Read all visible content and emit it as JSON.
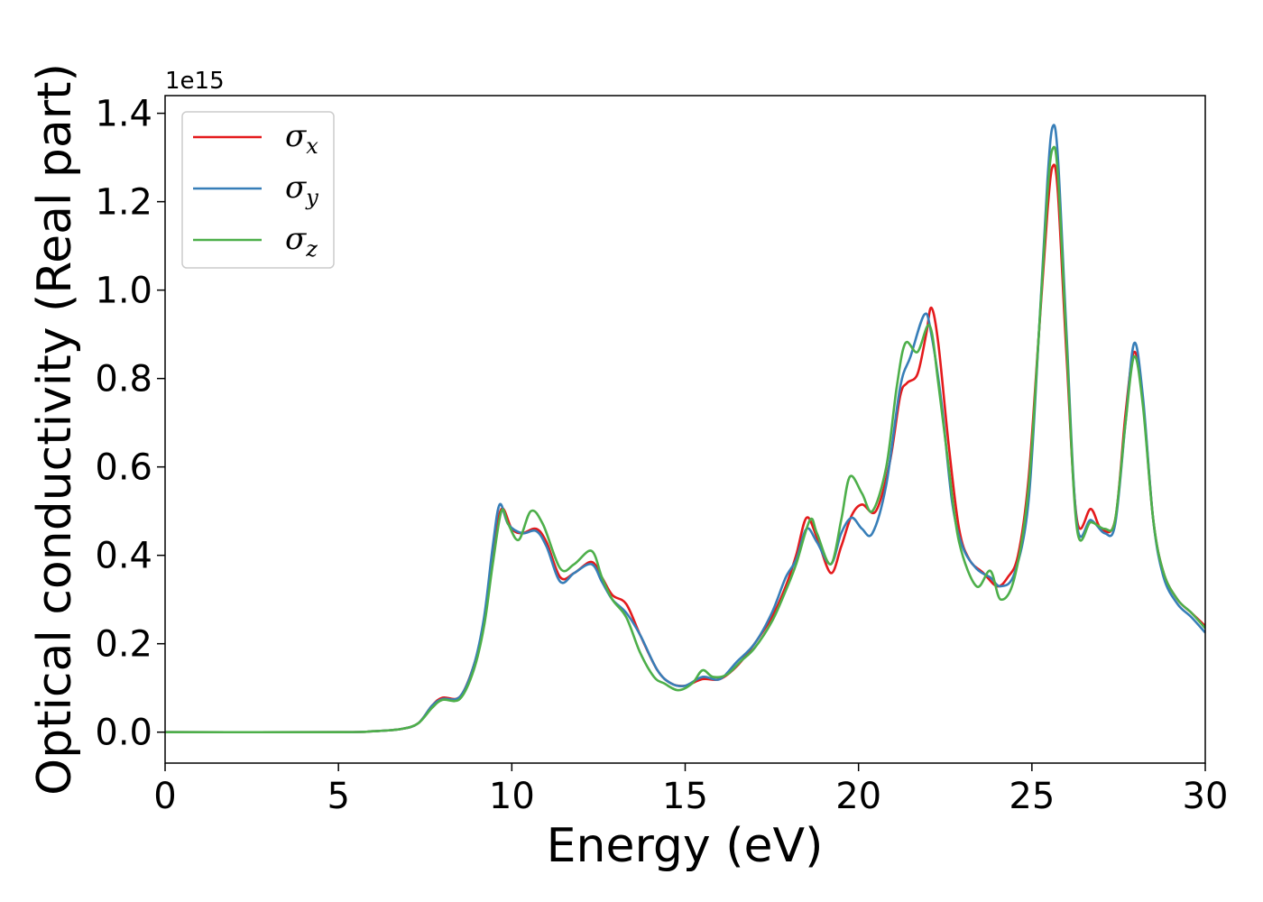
{
  "chart_data": {
    "type": "line",
    "title": "",
    "xlabel": "Energy (eV)",
    "ylabel": "Optical conductivity (Real part)",
    "y_offset_label": "1e15",
    "xlim": [
      0,
      30
    ],
    "ylim": [
      -0.07,
      1.44
    ],
    "x_ticks": [
      0,
      5,
      10,
      15,
      20,
      25,
      30
    ],
    "x_tick_labels": [
      "0",
      "5",
      "10",
      "15",
      "20",
      "25",
      "30"
    ],
    "y_ticks": [
      0.0,
      0.2,
      0.4,
      0.6,
      0.8,
      1.0,
      1.2,
      1.4
    ],
    "y_tick_labels": [
      "0.0",
      "0.2",
      "0.4",
      "0.6",
      "0.8",
      "1.0",
      "1.2",
      "1.4"
    ],
    "grid": false,
    "legend_position": "top-left",
    "series": [
      {
        "name": "σx",
        "symbol": "σ",
        "subscript": "x",
        "color": "#e41a1c",
        "points": [
          [
            0,
            0
          ],
          [
            5,
            0
          ],
          [
            6,
            0.002
          ],
          [
            6.8,
            0.007
          ],
          [
            7.3,
            0.02
          ],
          [
            7.7,
            0.06
          ],
          [
            8,
            0.078
          ],
          [
            8.5,
            0.08
          ],
          [
            8.9,
            0.15
          ],
          [
            9.2,
            0.25
          ],
          [
            9.45,
            0.4
          ],
          [
            9.7,
            0.505
          ],
          [
            10,
            0.46
          ],
          [
            10.3,
            0.45
          ],
          [
            10.7,
            0.46
          ],
          [
            11,
            0.43
          ],
          [
            11.4,
            0.35
          ],
          [
            11.8,
            0.36
          ],
          [
            12.3,
            0.385
          ],
          [
            12.6,
            0.35
          ],
          [
            12.9,
            0.31
          ],
          [
            13.3,
            0.29
          ],
          [
            13.7,
            0.22
          ],
          [
            14.2,
            0.14
          ],
          [
            14.6,
            0.11
          ],
          [
            15,
            0.105
          ],
          [
            15.5,
            0.12
          ],
          [
            16,
            0.12
          ],
          [
            16.5,
            0.15
          ],
          [
            17,
            0.2
          ],
          [
            17.5,
            0.26
          ],
          [
            17.9,
            0.33
          ],
          [
            18.2,
            0.4
          ],
          [
            18.5,
            0.485
          ],
          [
            18.8,
            0.44
          ],
          [
            19.2,
            0.36
          ],
          [
            19.5,
            0.42
          ],
          [
            19.8,
            0.49
          ],
          [
            20.1,
            0.515
          ],
          [
            20.5,
            0.5
          ],
          [
            20.9,
            0.61
          ],
          [
            21.2,
            0.76
          ],
          [
            21.4,
            0.79
          ],
          [
            21.7,
            0.81
          ],
          [
            21.95,
            0.9
          ],
          [
            22.1,
            0.96
          ],
          [
            22.3,
            0.88
          ],
          [
            22.6,
            0.65
          ],
          [
            22.9,
            0.46
          ],
          [
            23.2,
            0.39
          ],
          [
            23.6,
            0.36
          ],
          [
            24,
            0.33
          ],
          [
            24.3,
            0.35
          ],
          [
            24.6,
            0.4
          ],
          [
            24.9,
            0.57
          ],
          [
            25.2,
            0.9
          ],
          [
            25.45,
            1.18
          ],
          [
            25.6,
            1.28
          ],
          [
            25.75,
            1.22
          ],
          [
            26,
            0.85
          ],
          [
            26.3,
            0.48
          ],
          [
            26.7,
            0.505
          ],
          [
            27,
            0.46
          ],
          [
            27.4,
            0.48
          ],
          [
            27.7,
            0.72
          ],
          [
            27.95,
            0.86
          ],
          [
            28.2,
            0.75
          ],
          [
            28.5,
            0.48
          ],
          [
            28.8,
            0.36
          ],
          [
            29.2,
            0.3
          ],
          [
            29.6,
            0.27
          ],
          [
            30,
            0.24
          ]
        ]
      },
      {
        "name": "σy",
        "symbol": "σ",
        "subscript": "y",
        "color": "#377eb8",
        "points": [
          [
            0,
            0
          ],
          [
            5,
            0
          ],
          [
            6,
            0.002
          ],
          [
            6.8,
            0.007
          ],
          [
            7.3,
            0.02
          ],
          [
            7.7,
            0.06
          ],
          [
            8,
            0.075
          ],
          [
            8.5,
            0.08
          ],
          [
            8.9,
            0.15
          ],
          [
            9.2,
            0.26
          ],
          [
            9.45,
            0.42
          ],
          [
            9.65,
            0.515
          ],
          [
            9.9,
            0.47
          ],
          [
            10.3,
            0.45
          ],
          [
            10.7,
            0.455
          ],
          [
            11,
            0.42
          ],
          [
            11.4,
            0.34
          ],
          [
            11.8,
            0.36
          ],
          [
            12.3,
            0.38
          ],
          [
            12.6,
            0.34
          ],
          [
            12.9,
            0.3
          ],
          [
            13.3,
            0.27
          ],
          [
            13.7,
            0.22
          ],
          [
            14.2,
            0.14
          ],
          [
            14.6,
            0.11
          ],
          [
            15,
            0.105
          ],
          [
            15.5,
            0.125
          ],
          [
            16,
            0.12
          ],
          [
            16.5,
            0.16
          ],
          [
            17,
            0.2
          ],
          [
            17.5,
            0.27
          ],
          [
            17.9,
            0.35
          ],
          [
            18.2,
            0.39
          ],
          [
            18.5,
            0.46
          ],
          [
            18.8,
            0.43
          ],
          [
            19.2,
            0.38
          ],
          [
            19.5,
            0.45
          ],
          [
            19.8,
            0.485
          ],
          [
            20.1,
            0.46
          ],
          [
            20.4,
            0.45
          ],
          [
            20.8,
            0.56
          ],
          [
            21.2,
            0.78
          ],
          [
            21.5,
            0.85
          ],
          [
            21.9,
            0.945
          ],
          [
            22.1,
            0.9
          ],
          [
            22.4,
            0.74
          ],
          [
            22.7,
            0.52
          ],
          [
            23,
            0.42
          ],
          [
            23.4,
            0.37
          ],
          [
            23.8,
            0.35
          ],
          [
            24.1,
            0.33
          ],
          [
            24.5,
            0.36
          ],
          [
            24.9,
            0.52
          ],
          [
            25.2,
            0.9
          ],
          [
            25.45,
            1.25
          ],
          [
            25.6,
            1.37
          ],
          [
            25.75,
            1.3
          ],
          [
            26,
            0.9
          ],
          [
            26.3,
            0.47
          ],
          [
            26.7,
            0.48
          ],
          [
            27.1,
            0.45
          ],
          [
            27.4,
            0.47
          ],
          [
            27.7,
            0.7
          ],
          [
            27.95,
            0.88
          ],
          [
            28.2,
            0.76
          ],
          [
            28.5,
            0.48
          ],
          [
            28.8,
            0.35
          ],
          [
            29.2,
            0.29
          ],
          [
            29.6,
            0.26
          ],
          [
            30,
            0.225
          ]
        ]
      },
      {
        "name": "σz",
        "symbol": "σ",
        "subscript": "z",
        "color": "#4daf4a",
        "points": [
          [
            0,
            0
          ],
          [
            5,
            0
          ],
          [
            6,
            0.002
          ],
          [
            6.8,
            0.007
          ],
          [
            7.3,
            0.02
          ],
          [
            7.7,
            0.055
          ],
          [
            8,
            0.073
          ],
          [
            8.5,
            0.075
          ],
          [
            8.9,
            0.14
          ],
          [
            9.2,
            0.24
          ],
          [
            9.45,
            0.38
          ],
          [
            9.7,
            0.5
          ],
          [
            9.9,
            0.47
          ],
          [
            10.2,
            0.435
          ],
          [
            10.55,
            0.5
          ],
          [
            10.9,
            0.47
          ],
          [
            11.4,
            0.37
          ],
          [
            11.8,
            0.38
          ],
          [
            12.3,
            0.41
          ],
          [
            12.6,
            0.35
          ],
          [
            12.9,
            0.3
          ],
          [
            13.3,
            0.26
          ],
          [
            13.7,
            0.18
          ],
          [
            14.1,
            0.125
          ],
          [
            14.4,
            0.11
          ],
          [
            14.8,
            0.095
          ],
          [
            15.2,
            0.11
          ],
          [
            15.5,
            0.14
          ],
          [
            15.8,
            0.125
          ],
          [
            16.2,
            0.13
          ],
          [
            16.6,
            0.16
          ],
          [
            17,
            0.19
          ],
          [
            17.5,
            0.25
          ],
          [
            17.9,
            0.32
          ],
          [
            18.2,
            0.38
          ],
          [
            18.6,
            0.48
          ],
          [
            18.8,
            0.45
          ],
          [
            19.2,
            0.38
          ],
          [
            19.5,
            0.48
          ],
          [
            19.75,
            0.578
          ],
          [
            20.1,
            0.54
          ],
          [
            20.4,
            0.5
          ],
          [
            20.8,
            0.6
          ],
          [
            21.1,
            0.78
          ],
          [
            21.35,
            0.88
          ],
          [
            21.7,
            0.86
          ],
          [
            22.05,
            0.92
          ],
          [
            22.3,
            0.79
          ],
          [
            22.6,
            0.6
          ],
          [
            22.9,
            0.43
          ],
          [
            23.4,
            0.33
          ],
          [
            23.8,
            0.365
          ],
          [
            24.1,
            0.3
          ],
          [
            24.5,
            0.35
          ],
          [
            24.9,
            0.55
          ],
          [
            25.2,
            0.9
          ],
          [
            25.45,
            1.22
          ],
          [
            25.6,
            1.32
          ],
          [
            25.75,
            1.26
          ],
          [
            26,
            0.88
          ],
          [
            26.3,
            0.46
          ],
          [
            26.7,
            0.475
          ],
          [
            27.1,
            0.46
          ],
          [
            27.4,
            0.48
          ],
          [
            27.7,
            0.7
          ],
          [
            27.95,
            0.85
          ],
          [
            28.2,
            0.74
          ],
          [
            28.5,
            0.48
          ],
          [
            28.8,
            0.36
          ],
          [
            29.2,
            0.3
          ],
          [
            29.6,
            0.27
          ],
          [
            30,
            0.235
          ]
        ]
      }
    ]
  }
}
